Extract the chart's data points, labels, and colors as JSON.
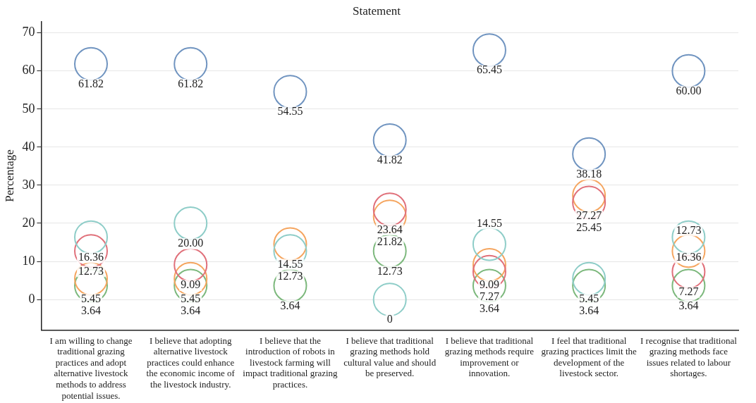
{
  "chart_data": {
    "type": "scatter",
    "xlabel": "Statement",
    "ylabel": "Percentage",
    "categories": [
      "I am willing to change traditional grazing practices and adopt alternative livestock methods to address potential issues.",
      "I believe that adopting alternative livestock practices could enhance the economic income of the livestock industry.",
      "I believe that the introduction of robots in livestock farming will impact traditional grazing practices.",
      "I believe that traditional grazing methods hold cultural value and should be preserved.",
      "I believe that traditional grazing methods require improvement or innovation.",
      "I feel that traditional grazing practices limit the development of the livestock sector.",
      "I recognise that traditional grazing methods face issues related to labour shortages."
    ],
    "series": [
      {
        "color": "#7094c0",
        "values": [
          61.82,
          61.82,
          54.55,
          41.82,
          65.45,
          38.18,
          60.0
        ],
        "value_labels": [
          "61.82",
          "61.82",
          "54.55",
          "41.82",
          "65.45",
          "38.18",
          "60.00"
        ]
      },
      {
        "color": "#8ecdc8",
        "values": [
          16.36,
          20.0,
          12.73,
          0,
          14.55,
          5.45,
          16.36
        ],
        "value_labels": [
          "16.36",
          "20.00",
          "12.73",
          "0",
          "14.55",
          "5.45",
          "16.36"
        ]
      },
      {
        "color": "#e0707a",
        "values": [
          12.73,
          9.09,
          null,
          23.64,
          7.27,
          25.45,
          7.27
        ],
        "value_labels": [
          "12.73",
          "9.09",
          null,
          "23.64",
          "7.27",
          "25.45",
          "7.27"
        ]
      },
      {
        "color": "#f5a55f",
        "values": [
          5.45,
          5.45,
          14.55,
          21.82,
          9.09,
          27.27,
          12.73
        ],
        "value_labels": [
          "5.45",
          "5.45",
          "14.55",
          "21.82",
          "9.09",
          "27.27",
          "12.73"
        ]
      },
      {
        "color": "#7cb87c",
        "values": [
          3.64,
          3.64,
          3.64,
          12.73,
          3.64,
          3.64,
          3.64
        ],
        "value_labels": [
          "3.64",
          "3.64",
          "3.64",
          "12.73",
          "3.64",
          "3.64",
          "3.64"
        ]
      }
    ],
    "ylim": [
      -8,
      73
    ],
    "yticks": [
      0,
      10,
      20,
      30,
      40,
      50,
      60,
      70
    ],
    "grid": "y",
    "legend": false,
    "marker": "circle"
  }
}
